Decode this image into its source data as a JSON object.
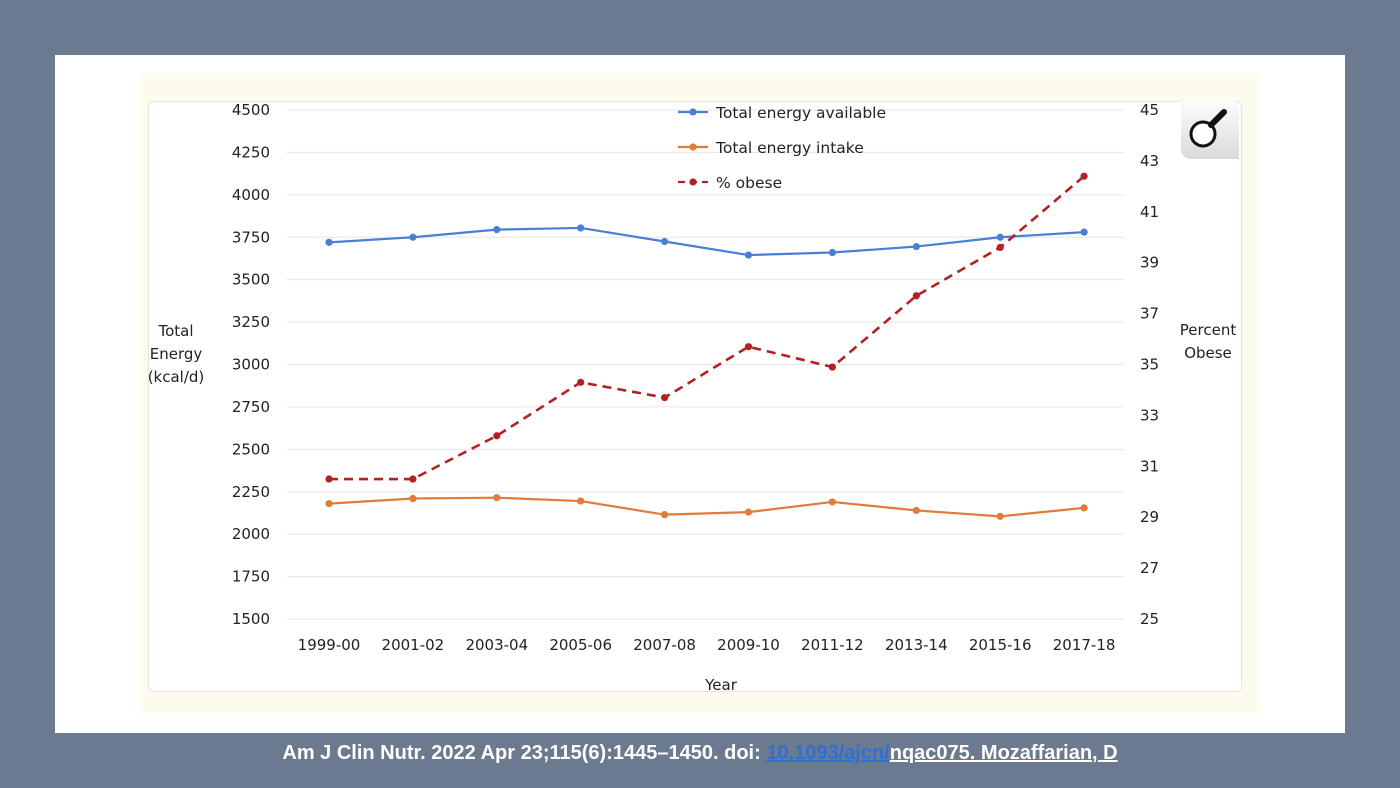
{
  "chart_data": {
    "type": "line",
    "xlabel": "Year",
    "ylabel_left": [
      "Total",
      "Energy",
      "(kcal/d)"
    ],
    "ylabel_right": [
      "Percent",
      "Obese"
    ],
    "categories": [
      "1999-00",
      "2001-02",
      "2003-04",
      "2005-06",
      "2007-08",
      "2009-10",
      "2011-12",
      "2013-14",
      "2015-16",
      "2017-18"
    ],
    "ylim_left": [
      1500,
      4500
    ],
    "yticks_left": [
      1500,
      1750,
      2000,
      2250,
      2500,
      2750,
      3000,
      3250,
      3500,
      3750,
      4000,
      4250,
      4500
    ],
    "ylim_right": [
      25,
      45
    ],
    "yticks_right": [
      25,
      27,
      29,
      31,
      33,
      35,
      37,
      39,
      41,
      43,
      45
    ],
    "grid": "horizontal",
    "legend": "top-center",
    "series": [
      {
        "name": "Total energy available",
        "axis": "left",
        "style": "solid",
        "color": "#4a7fd6",
        "values": [
          3720,
          3750,
          3795,
          3805,
          3725,
          3645,
          3660,
          3695,
          3750,
          3780
        ]
      },
      {
        "name": "Total energy intake",
        "axis": "left",
        "style": "solid",
        "color": "#e07b3a",
        "values": [
          2180,
          2210,
          2215,
          2195,
          2115,
          2130,
          2190,
          2140,
          2105,
          2155
        ]
      },
      {
        "name": "% obese",
        "axis": "right",
        "style": "dashed",
        "color": "#b22222",
        "values": [
          30.5,
          30.5,
          32.2,
          34.3,
          33.7,
          35.7,
          34.9,
          37.7,
          39.6,
          42.4
        ]
      }
    ]
  },
  "zoom_icon": "magnifier-icon",
  "citation": {
    "prefix": "Am J Clin Nutr. 2022 Apr 23;115(6):1445–1450. doi: ",
    "doi_link": "10.1093/ajcn/",
    "suffix": "nqac075. Mozaffarian, D"
  }
}
